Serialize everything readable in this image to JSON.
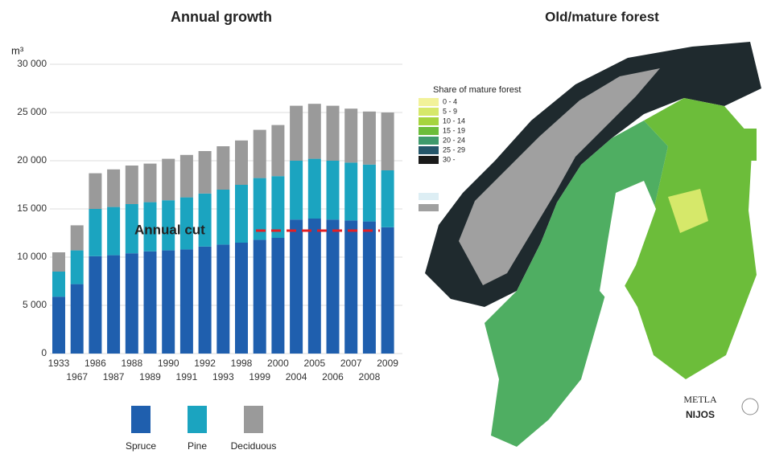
{
  "chart_data": {
    "type": "stacked_bar",
    "title": "Annual growth",
    "y_label": "m³",
    "categories": [
      "1933",
      "1967",
      "1986",
      "1987",
      "1988",
      "1989",
      "1990",
      "1991",
      "1992",
      "1993",
      "1998",
      "1999",
      "2000",
      "2004",
      "2005",
      "2006",
      "2007",
      "2008",
      "2009"
    ],
    "series": [
      {
        "name": "Spruce",
        "color": "#1f5fae",
        "values": [
          5900,
          7200,
          10100,
          10200,
          10400,
          10600,
          10700,
          10800,
          11100,
          11300,
          11500,
          11800,
          12000,
          13900,
          14000,
          13900,
          13800,
          13700,
          13100
        ]
      },
      {
        "name": "Pine",
        "color": "#1ba4c0",
        "values": [
          2600,
          3500,
          4900,
          5000,
          5100,
          5100,
          5200,
          5400,
          5500,
          5700,
          6000,
          6400,
          6400,
          6100,
          6200,
          6100,
          6000,
          5900,
          5900
        ]
      },
      {
        "name": "Deciduous",
        "color": "#9a9a9a",
        "values": [
          2000,
          2600,
          3700,
          3900,
          4000,
          4000,
          4300,
          4400,
          4400,
          4500,
          4600,
          5000,
          5300,
          5700,
          5700,
          5700,
          5600,
          5500,
          6000
        ]
      }
    ],
    "ylim": [
      0,
      30000
    ],
    "yticks": [
      0,
      {
        "value": 5000,
        "label": "5 000"
      },
      {
        "value": 10000,
        "label": "10 000"
      },
      {
        "value": 15000,
        "label": "15 000"
      },
      {
        "value": 20000,
        "label": "20 000"
      },
      {
        "value": 25000,
        "label": "25 000"
      },
      {
        "value": 30000,
        "label": "30 000"
      }
    ],
    "grid": true,
    "annotation": {
      "label": "Annual cut",
      "value": 12750,
      "color": "#e31e24"
    }
  },
  "map": {
    "title": "Old/mature forest",
    "legend_title": "Share of mature forest",
    "legend": [
      {
        "label": "0 - 4",
        "color": "#f2f29a"
      },
      {
        "label": "5 - 9",
        "color": "#d6e86a"
      },
      {
        "label": "10 - 14",
        "color": "#a6d43e"
      },
      {
        "label": "15 - 19",
        "color": "#6cbd3a"
      },
      {
        "label": "20 - 24",
        "color": "#3f9a6c"
      },
      {
        "label": "25 - 29",
        "color": "#25566a"
      },
      {
        "label": "30 -",
        "color": "#1a1a1a"
      }
    ],
    "logos": [
      "METLA",
      "NIJOS"
    ]
  }
}
